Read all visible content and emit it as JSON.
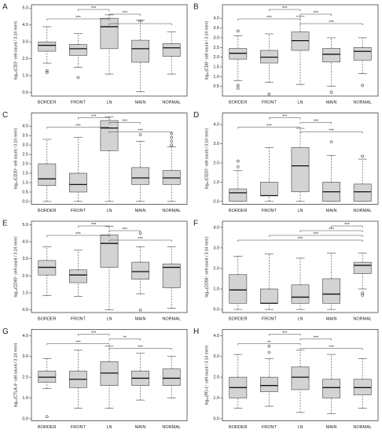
{
  "chart_data": [
    {
      "type": "box",
      "panel": "A",
      "y_label": "log₁₀(CD3⁺ cell count / 3.14 mm²)",
      "categories": [
        "BORDER",
        "FRONT",
        "LN",
        "MAIN",
        "NORMAL"
      ],
      "ylim": [
        -0.2,
        5.2
      ],
      "yticks": [
        {
          "value": 0,
          "label": "0.0"
        },
        {
          "value": 1,
          "label": "1.0"
        },
        {
          "value": 2,
          "label": "2.0"
        },
        {
          "value": 3,
          "label": "3.0"
        },
        {
          "value": 4,
          "label": "4.0"
        },
        {
          "value": 5,
          "label": "5.0"
        }
      ],
      "boxes": [
        {
          "whisker_low": 1.75,
          "q1": 2.45,
          "median": 2.8,
          "q3": 3.0,
          "whisker_high": 3.9,
          "outliers": [
            1.2,
            1.3
          ]
        },
        {
          "whisker_low": 1.5,
          "q1": 2.2,
          "median": 2.6,
          "q3": 2.85,
          "whisker_high": 3.5,
          "outliers": [
            0.9
          ]
        },
        {
          "whisker_low": 1.1,
          "q1": 2.6,
          "median": 3.9,
          "q3": 4.4,
          "whisker_high": 4.6,
          "outliers": []
        },
        {
          "whisker_low": 0.05,
          "q1": 1.8,
          "median": 2.6,
          "q3": 3.1,
          "whisker_high": 4.3,
          "outliers": []
        },
        {
          "whisker_low": 1.1,
          "q1": 2.15,
          "median": 2.65,
          "q3": 2.9,
          "whisker_high": 3.6,
          "outliers": []
        }
      ],
      "brackets": [
        {
          "from": "FRONT",
          "to": "LN",
          "label": "***"
        },
        {
          "from": "LN",
          "to": "MAIN",
          "label": "***"
        },
        {
          "from": "BORDER",
          "to": "LN",
          "label": "***"
        },
        {
          "from": "LN",
          "to": "NORMAL",
          "label": "***"
        }
      ]
    },
    {
      "type": "box",
      "panel": "B",
      "y_label": "log₁₀(CD8⁺ cell count / 3.14 mm²)",
      "categories": [
        "BORDER",
        "FRONT",
        "LN",
        "MAIN",
        "NORMAL"
      ],
      "ylim": [
        0,
        4.7
      ],
      "yticks": [
        {
          "value": 0.5,
          "label": "0.5"
        },
        {
          "value": 1,
          "label": "1.0"
        },
        {
          "value": 1.5,
          "label": "1.5"
        },
        {
          "value": 2,
          "label": "2.0"
        },
        {
          "value": 2.5,
          "label": "2.5"
        },
        {
          "value": 3,
          "label": "3.0"
        },
        {
          "value": 3.5,
          "label": "3.5"
        },
        {
          "value": 4,
          "label": "4.0"
        }
      ],
      "boxes": [
        {
          "whisker_low": 0.8,
          "q1": 1.9,
          "median": 2.2,
          "q3": 2.45,
          "whisker_high": 3.1,
          "outliers": [
            0.4,
            0.55,
            3.35
          ]
        },
        {
          "whisker_low": 0.7,
          "q1": 1.7,
          "median": 2.0,
          "q3": 2.35,
          "whisker_high": 3.2,
          "outliers": [
            0.1
          ]
        },
        {
          "whisker_low": 0.6,
          "q1": 2.35,
          "median": 2.85,
          "q3": 3.3,
          "whisker_high": 4.1,
          "outliers": []
        },
        {
          "whisker_low": 0.5,
          "q1": 1.75,
          "median": 2.15,
          "q3": 2.45,
          "whisker_high": 3.0,
          "outliers": [
            0.2
          ]
        },
        {
          "whisker_low": 1.15,
          "q1": 1.85,
          "median": 2.3,
          "q3": 2.5,
          "whisker_high": 3.0,
          "outliers": [
            0.55
          ]
        }
      ],
      "brackets": [
        {
          "from": "FRONT",
          "to": "LN",
          "label": "***"
        },
        {
          "from": "LN",
          "to": "MAIN",
          "label": "***"
        },
        {
          "from": "BORDER",
          "to": "LN",
          "label": "***"
        },
        {
          "from": "LN",
          "to": "NORMAL",
          "label": "***"
        }
      ]
    },
    {
      "type": "box",
      "panel": "C",
      "y_label": "log₁₀(CD20⁺ cell count / 3.14 mm²)",
      "categories": [
        "BORDER",
        "FRONT",
        "LN",
        "MAIN",
        "NORMAL"
      ],
      "ylim": [
        -0.15,
        4.7
      ],
      "yticks": [
        {
          "value": 0,
          "label": "0.0"
        },
        {
          "value": 0.5,
          "label": "0.5"
        },
        {
          "value": 1,
          "label": "1.0"
        },
        {
          "value": 1.5,
          "label": "1.5"
        },
        {
          "value": 2,
          "label": "2.0"
        },
        {
          "value": 2.5,
          "label": "2.5"
        },
        {
          "value": 3,
          "label": "3.0"
        },
        {
          "value": 3.5,
          "label": "3.5"
        },
        {
          "value": 4,
          "label": "4.0"
        }
      ],
      "boxes": [
        {
          "whisker_low": 0,
          "q1": 0.85,
          "median": 1.2,
          "q3": 2.0,
          "whisker_high": 3.3,
          "outliers": []
        },
        {
          "whisker_low": 0,
          "q1": 0.5,
          "median": 0.9,
          "q3": 1.5,
          "whisker_high": 3.4,
          "outliers": []
        },
        {
          "whisker_low": 0,
          "q1": 2.7,
          "median": 3.9,
          "q3": 4.3,
          "whisker_high": 4.5,
          "outliers": []
        },
        {
          "whisker_low": 0,
          "q1": 0.9,
          "median": 1.25,
          "q3": 1.8,
          "whisker_high": 3.2,
          "outliers": [
            3.55
          ]
        },
        {
          "whisker_low": 0,
          "q1": 0.9,
          "median": 1.25,
          "q3": 1.65,
          "whisker_high": 2.9,
          "outliers": [
            3.0,
            3.2,
            3.4,
            3.6
          ]
        }
      ],
      "brackets": [
        {
          "from": "FRONT",
          "to": "LN",
          "label": "***"
        },
        {
          "from": "LN",
          "to": "MAIN",
          "label": "***"
        },
        {
          "from": "BORDER",
          "to": "LN",
          "label": "***"
        },
        {
          "from": "LN",
          "to": "NORMAL",
          "label": "***"
        }
      ]
    },
    {
      "type": "box",
      "panel": "D",
      "y_label": "log₁₀(CD23⁺ cell count / 3.14 mm²)",
      "categories": [
        "BORDER",
        "FRONT",
        "LN",
        "MAIN",
        "NORMAL"
      ],
      "ylim": [
        -0.15,
        4.6
      ],
      "yticks": [
        {
          "value": 0,
          "label": "0.0"
        },
        {
          "value": 1,
          "label": "1.0"
        },
        {
          "value": 2,
          "label": "2.0"
        },
        {
          "value": 3,
          "label": "3.0"
        },
        {
          "value": 4,
          "label": "4.0"
        }
      ],
      "boxes": [
        {
          "whisker_low": 0,
          "q1": 0,
          "median": 0.45,
          "q3": 0.65,
          "whisker_high": 1.6,
          "outliers": [
            1.8,
            2.1
          ]
        },
        {
          "whisker_low": 0,
          "q1": 0.3,
          "median": 0.3,
          "q3": 1.0,
          "whisker_high": 2.8,
          "outliers": []
        },
        {
          "whisker_low": 0,
          "q1": 0.5,
          "median": 1.85,
          "q3": 2.8,
          "whisker_high": 3.8,
          "outliers": []
        },
        {
          "whisker_low": 0,
          "q1": 0,
          "median": 0.5,
          "q3": 1.0,
          "whisker_high": 2.4,
          "outliers": [
            3.1
          ]
        },
        {
          "whisker_low": 0,
          "q1": 0,
          "median": 0.5,
          "q3": 0.9,
          "whisker_high": 2.2,
          "outliers": [
            2.35
          ]
        }
      ],
      "brackets": [
        {
          "from": "FRONT",
          "to": "LN",
          "label": "***"
        },
        {
          "from": "LN",
          "to": "MAIN",
          "label": "***"
        },
        {
          "from": "BORDER",
          "to": "LN",
          "label": "***"
        },
        {
          "from": "LN",
          "to": "NORMAL",
          "label": "***"
        }
      ]
    },
    {
      "type": "box",
      "panel": "E",
      "y_label": "log₁₀(CD45⁺ cell count / 3.14 mm²)",
      "categories": [
        "BORDER",
        "FRONT",
        "LN",
        "MAIN",
        "NORMAL"
      ],
      "ylim": [
        -0.15,
        5.2
      ],
      "yticks": [
        {
          "value": 0,
          "label": "0.0"
        },
        {
          "value": 1,
          "label": "1.0"
        },
        {
          "value": 2,
          "label": "2.0"
        },
        {
          "value": 3,
          "label": "3.0"
        },
        {
          "value": 4,
          "label": "4.0"
        },
        {
          "value": 5,
          "label": "5.0"
        }
      ],
      "boxes": [
        {
          "whisker_low": 0.85,
          "q1": 2.05,
          "median": 2.5,
          "q3": 2.9,
          "whisker_high": 3.7,
          "outliers": []
        },
        {
          "whisker_low": 0.8,
          "q1": 1.6,
          "median": 2.05,
          "q3": 2.35,
          "whisker_high": 3.5,
          "outliers": []
        },
        {
          "whisker_low": 0,
          "q1": 2.5,
          "median": 3.9,
          "q3": 4.4,
          "whisker_high": 4.9,
          "outliers": []
        },
        {
          "whisker_low": 0.95,
          "q1": 1.8,
          "median": 2.25,
          "q3": 2.8,
          "whisker_high": 3.7,
          "outliers": [
            0.0,
            4.5
          ]
        },
        {
          "whisker_low": 0.1,
          "q1": 1.3,
          "median": 2.5,
          "q3": 2.7,
          "whisker_high": 3.7,
          "outliers": []
        }
      ],
      "brackets": [
        {
          "from": "FRONT",
          "to": "LN",
          "label": "***"
        },
        {
          "from": "LN",
          "to": "MAIN",
          "label": "***"
        },
        {
          "from": "BORDER",
          "to": "LN",
          "label": "***"
        },
        {
          "from": "LN",
          "to": "NORMAL",
          "label": "***"
        }
      ]
    },
    {
      "type": "box",
      "panel": "F",
      "y_label": "log₁₀(CD56⁺ cell count / 3.14 mm²)",
      "categories": [
        "BORDER",
        "FRONT",
        "LN",
        "MAIN",
        "NORMAL"
      ],
      "ylim": [
        -0.15,
        4.3
      ],
      "yticks": [
        {
          "value": 0,
          "label": "0.0"
        },
        {
          "value": 1,
          "label": "1.0"
        },
        {
          "value": 2,
          "label": "2.0"
        },
        {
          "value": 3,
          "label": "3.0"
        },
        {
          "value": 4,
          "label": "4.0"
        }
      ],
      "boxes": [
        {
          "whisker_low": 0,
          "q1": 0.3,
          "median": 0.95,
          "q3": 1.7,
          "whisker_high": 2.6,
          "outliers": []
        },
        {
          "whisker_low": 0,
          "q1": 0.3,
          "median": 0.3,
          "q3": 1.0,
          "whisker_high": 2.7,
          "outliers": []
        },
        {
          "whisker_low": 0,
          "q1": 0.3,
          "median": 0.6,
          "q3": 1.2,
          "whisker_high": 2.5,
          "outliers": []
        },
        {
          "whisker_low": 0,
          "q1": 0.3,
          "median": 0.75,
          "q3": 1.5,
          "whisker_high": 2.75,
          "outliers": []
        },
        {
          "whisker_low": 1.0,
          "q1": 1.75,
          "median": 2.15,
          "q3": 2.3,
          "whisker_high": 2.75,
          "outliers": [
            0.7,
            0.8
          ]
        }
      ],
      "brackets": [
        {
          "from": "MAIN",
          "to": "NORMAL",
          "label": "***"
        },
        {
          "from": "LN",
          "to": "NORMAL",
          "label": "***"
        },
        {
          "from": "FRONT",
          "to": "NORMAL",
          "label": "***"
        },
        {
          "from": "BORDER",
          "to": "NORMAL",
          "label": "***"
        }
      ]
    },
    {
      "type": "box",
      "panel": "G",
      "y_label": "log₁₀(CTLA-4⁺ cell count / 3.14 mm²)",
      "categories": [
        "BORDER",
        "FRONT",
        "LN",
        "MAIN",
        "NORMAL"
      ],
      "ylim": [
        -0.1,
        4.3
      ],
      "yticks": [
        {
          "value": 0,
          "label": "0.0"
        },
        {
          "value": 1,
          "label": "1.0"
        },
        {
          "value": 2,
          "label": "2.0"
        },
        {
          "value": 3,
          "label": "3.0"
        },
        {
          "value": 4,
          "label": "4.0"
        }
      ],
      "boxes": [
        {
          "whisker_low": 1.45,
          "q1": 1.75,
          "median": 2.0,
          "q3": 2.3,
          "whisker_high": 2.9,
          "outliers": [
            0.1
          ]
        },
        {
          "whisker_low": 0.5,
          "q1": 1.5,
          "median": 1.9,
          "q3": 2.3,
          "whisker_high": 3.3,
          "outliers": []
        },
        {
          "whisker_low": 0.5,
          "q1": 1.6,
          "median": 2.2,
          "q3": 2.75,
          "whisker_high": 3.5,
          "outliers": []
        },
        {
          "whisker_low": 0.9,
          "q1": 1.6,
          "median": 1.95,
          "q3": 2.3,
          "whisker_high": 3.15,
          "outliers": []
        },
        {
          "whisker_low": 1.0,
          "q1": 1.6,
          "median": 1.95,
          "q3": 2.4,
          "whisker_high": 3.0,
          "outliers": []
        }
      ],
      "brackets": [
        {
          "from": "FRONT",
          "to": "LN",
          "label": "***"
        },
        {
          "from": "LN",
          "to": "MAIN",
          "label": "**"
        },
        {
          "from": "BORDER",
          "to": "LN",
          "label": "***"
        },
        {
          "from": "LN",
          "to": "NORMAL",
          "label": "***"
        }
      ]
    },
    {
      "type": "box",
      "panel": "H",
      "y_label": "log₁₀(PD-1⁺ cell count / 3.14 mm²)",
      "categories": [
        "BORDER",
        "FRONT",
        "LN",
        "MAIN",
        "NORMAL"
      ],
      "ylim": [
        -0.1,
        4.3
      ],
      "yticks": [
        {
          "value": 0,
          "label": "0.0"
        },
        {
          "value": 1,
          "label": "1.0"
        },
        {
          "value": 2,
          "label": "2.0"
        },
        {
          "value": 3,
          "label": "3.0"
        },
        {
          "value": 4,
          "label": "4.0"
        }
      ],
      "boxes": [
        {
          "whisker_low": 0.5,
          "q1": 1.0,
          "median": 1.5,
          "q3": 2.0,
          "whisker_high": 3.1,
          "outliers": []
        },
        {
          "whisker_low": 0.6,
          "q1": 1.3,
          "median": 1.6,
          "q3": 2.0,
          "whisker_high": 2.9,
          "outliers": [
            3.2,
            3.5
          ]
        },
        {
          "whisker_low": 0.3,
          "q1": 1.4,
          "median": 2.0,
          "q3": 2.5,
          "whisker_high": 3.3,
          "outliers": []
        },
        {
          "whisker_low": 0.25,
          "q1": 1.0,
          "median": 1.5,
          "q3": 1.9,
          "whisker_high": 3.1,
          "outliers": []
        },
        {
          "whisker_low": 0.5,
          "q1": 1.15,
          "median": 1.5,
          "q3": 1.9,
          "whisker_high": 2.9,
          "outliers": []
        }
      ],
      "brackets": [
        {
          "from": "FRONT",
          "to": "LN",
          "label": "***"
        },
        {
          "from": "LN",
          "to": "MAIN",
          "label": "***"
        },
        {
          "from": "BORDER",
          "to": "LN",
          "label": "**"
        },
        {
          "from": "LN",
          "to": "NORMAL",
          "label": "***"
        }
      ]
    }
  ]
}
